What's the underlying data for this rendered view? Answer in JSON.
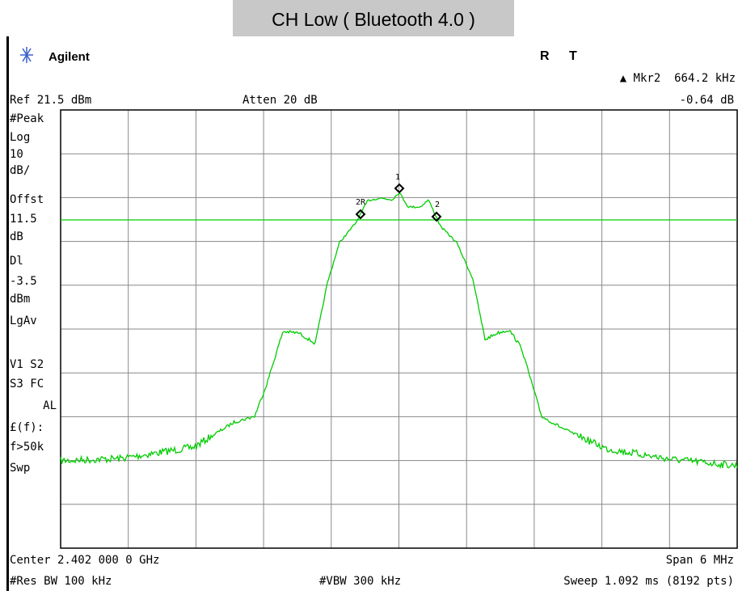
{
  "title": "CH Low ( Bluetooth 4.0 )",
  "header": {
    "brand": "Agilent",
    "status_r": "R",
    "status_t": "T",
    "marker_readout": "▲ Mkr2  664.2 kHz",
    "marker_delta": "-0.64 dB",
    "ref_level": "Ref 21.5 dBm",
    "attenuation": "Atten 20 dB"
  },
  "side_labels": [
    "#Peak",
    "Log",
    "10",
    "dB/",
    "Offst",
    "11.5",
    "dB",
    "Dl",
    "-3.5",
    "dBm",
    "LgAv",
    "V1  S2",
    "S3  FC",
    "AL",
    "£(f):",
    "f>50k",
    "Swp"
  ],
  "markers": [
    "1",
    "2R",
    "2"
  ],
  "footer": {
    "center": "Center 2.402 000 0 GHz",
    "span": "Span 6 MHz",
    "res_bw": "#Res BW 100 kHz",
    "vbw": "#VBW 300 kHz",
    "sweep": "Sweep 1.092 ms (8192 pts)"
  }
}
